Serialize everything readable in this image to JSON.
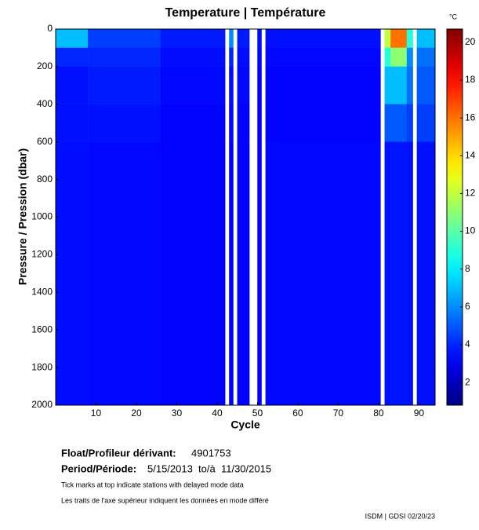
{
  "chart_data": {
    "type": "heatmap",
    "title": "Temperature | Température",
    "xlabel": "Cycle",
    "ylabel": "Pressure / Pression (dbar)",
    "colorbar_label": "°C",
    "xlim": [
      0,
      94
    ],
    "xticks": [
      10,
      20,
      30,
      40,
      50,
      60,
      70,
      80,
      90
    ],
    "ylim": [
      0,
      2000
    ],
    "yticks": [
      0,
      200,
      400,
      600,
      800,
      1000,
      1200,
      1400,
      1600,
      1800,
      2000
    ],
    "y_inverted": true,
    "clim": [
      0.8,
      20.7
    ],
    "cticks": [
      2,
      4,
      6,
      8,
      10,
      12,
      14,
      16,
      18,
      20
    ],
    "colormap": "jet",
    "x_edges": [
      0,
      8,
      26,
      42,
      43,
      44,
      45,
      48,
      50,
      51,
      52,
      80.5,
      81.5,
      83,
      87,
      88.5,
      89.5,
      94
    ],
    "y_edges": [
      0,
      100,
      200,
      400,
      600,
      2000
    ],
    "z": [
      [
        7,
        4,
        3.6,
        3.6,
        3.5
      ],
      [
        4.5,
        4,
        3.8,
        3.6,
        3.4
      ],
      [
        3.8,
        3.5,
        3.4,
        3.3,
        3.3
      ],
      [
        null,
        null,
        null,
        null,
        null
      ],
      [
        6,
        4,
        3.5,
        3.4,
        3.3
      ],
      [
        null,
        null,
        null,
        null,
        null
      ],
      [
        3.8,
        3.5,
        3.4,
        3.3,
        3.3
      ],
      [
        null,
        null,
        null,
        null,
        null
      ],
      [
        3.5,
        3.4,
        3.3,
        3.3,
        3.3
      ],
      [
        null,
        null,
        null,
        null,
        null
      ],
      [
        3.6,
        3.4,
        3.3,
        3.3,
        3.4
      ],
      [
        null,
        null,
        null,
        null,
        null
      ],
      [
        12,
        9,
        7,
        5,
        3.6
      ],
      [
        16,
        11,
        7,
        5,
        3.7
      ],
      [
        9,
        6,
        5.5,
        4.5,
        3.6
      ],
      [
        null,
        null,
        null,
        null,
        null
      ],
      [
        7,
        5.5,
        5,
        4.5,
        3.6
      ]
    ]
  },
  "info": {
    "float_label": "Float/Profileur dérivant:",
    "float_id": "4901753",
    "period_label": "Period/Période:",
    "period": "5/15/2013  to/à  11/30/2015",
    "note_en": "Tick marks at top indicate stations with delayed mode data",
    "note_fr": "Les traits de l'axe supérieur indiquent les données en mode différé",
    "footer": "ISDM | GDSI 02/20/23"
  }
}
